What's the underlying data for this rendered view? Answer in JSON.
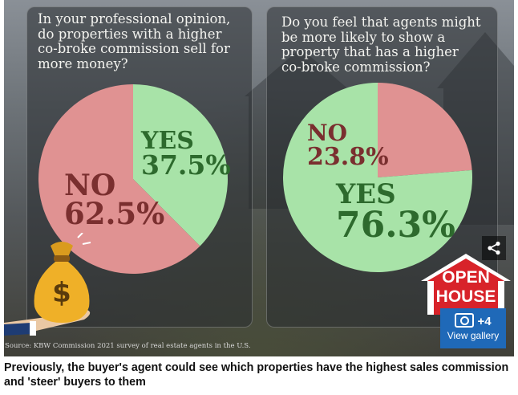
{
  "chart_data": [
    {
      "type": "pie",
      "title": "In your professional opinion,\ndo properties with a higher\nco-broke commission sell for\nmore money?",
      "slices": [
        {
          "label": "YES",
          "value": 37.5,
          "display": "37.5%",
          "color": "#a8e3a8"
        },
        {
          "label": "NO",
          "value": 62.5,
          "display": "62.5%",
          "color": "#e09292"
        }
      ]
    },
    {
      "type": "pie",
      "title": "Do you feel that agents might\nbe more likely to show a\nproperty that has a higher\nco-broke commission?",
      "slices": [
        {
          "label": "NO",
          "value": 23.8,
          "display": "23.8%",
          "color": "#e09292"
        },
        {
          "label": "YES",
          "value": 76.3,
          "display": "76.3%",
          "color": "#a8e3a8"
        }
      ]
    }
  ],
  "source": "Source: KBW Commission 2021 survey of real estate agents in the U.S.",
  "sign": {
    "line1": "OPEN",
    "line2": "HOUSE"
  },
  "gallery": {
    "count": "+4",
    "label": "View gallery",
    "icon": "camera-icon"
  },
  "share": {
    "icon": "share-icon"
  },
  "caption": "Previously, the buyer's agent could see which properties have the highest sales commission and 'steer' buyers to them",
  "colors": {
    "yes_text": "#2d6a2d",
    "no_text": "#7a2f2f",
    "gallery_blue": "#1f69b8",
    "sign_red": "#d8232a"
  }
}
